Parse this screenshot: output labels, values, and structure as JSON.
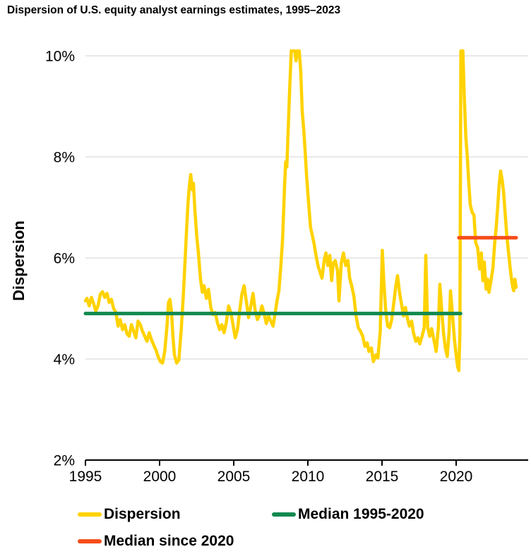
{
  "title": "Dispersion of U.S. equity analyst earnings estimates, 1995–2023",
  "legend": {
    "items": [
      {
        "label": "Dispersion",
        "color": "#FFD200"
      },
      {
        "label": "Median 1995-2020",
        "color": "#128A50"
      },
      {
        "label": "Median since 2020",
        "color": "#F64E1B"
      }
    ]
  },
  "chart_data": {
    "type": "line",
    "title": "Dispersion of U.S. equity analyst earnings estimates, 1995–2023",
    "xlabel": "",
    "ylabel": "Dispersion",
    "xlim": [
      1995,
      2024.5
    ],
    "ylim": [
      2,
      10
    ],
    "values_above_ylim_clipped": true,
    "grid": "horizontal",
    "grid_color": "#DCDCDC",
    "axis_color": "#000000",
    "legend_position": "bottom",
    "y_axis": {
      "tick_values": [
        10,
        8,
        6,
        4,
        2
      ],
      "tick_labels": [
        "10%",
        "8%",
        "6%",
        "4%",
        "2%"
      ],
      "grid_values": [
        10,
        8,
        6,
        4
      ]
    },
    "x_axis": {
      "tick_values": [
        1995,
        2000,
        2005,
        2010,
        2015,
        2020
      ],
      "tick_labels": [
        "1995",
        "2000",
        "2005",
        "2010",
        "2015",
        "2020"
      ]
    },
    "series": [
      {
        "name": "Dispersion",
        "color": "#FFD200",
        "width": 4.5,
        "x": [
          1995.0,
          1995.1,
          1995.25,
          1995.4,
          1995.55,
          1995.7,
          1995.85,
          1996.0,
          1996.15,
          1996.3,
          1996.45,
          1996.6,
          1996.75,
          1996.9,
          1997.05,
          1997.2,
          1997.35,
          1997.5,
          1997.65,
          1997.8,
          1997.95,
          1998.1,
          1998.25,
          1998.4,
          1998.55,
          1998.7,
          1998.85,
          1999.0,
          1999.15,
          1999.3,
          1999.45,
          1999.6,
          1999.75,
          1999.9,
          2000.05,
          2000.2,
          2000.35,
          2000.5,
          2000.6,
          2000.7,
          2000.8,
          2000.9,
          2001.0,
          2001.15,
          2001.3,
          2001.45,
          2001.6,
          2001.72,
          2001.82,
          2001.92,
          2002.02,
          2002.1,
          2002.2,
          2002.28,
          2002.38,
          2002.5,
          2002.62,
          2002.75,
          2002.88,
          2003.0,
          2003.15,
          2003.3,
          2003.45,
          2003.6,
          2003.75,
          2003.9,
          2004.05,
          2004.2,
          2004.35,
          2004.5,
          2004.65,
          2004.8,
          2004.95,
          2005.1,
          2005.25,
          2005.4,
          2005.55,
          2005.7,
          2005.85,
          2006.0,
          2006.15,
          2006.3,
          2006.45,
          2006.6,
          2006.75,
          2006.9,
          2007.05,
          2007.2,
          2007.35,
          2007.5,
          2007.65,
          2007.8,
          2007.92,
          2008.05,
          2008.18,
          2008.3,
          2008.42,
          2008.5,
          2008.58,
          2008.68,
          2008.78,
          2008.88,
          2009.0,
          2009.12,
          2009.2,
          2009.3,
          2009.42,
          2009.52,
          2009.62,
          2009.72,
          2009.82,
          2009.92,
          2010.05,
          2010.18,
          2010.3,
          2010.42,
          2010.55,
          2010.68,
          2010.82,
          2010.95,
          2011.1,
          2011.22,
          2011.35,
          2011.48,
          2011.6,
          2011.72,
          2011.85,
          2012.0,
          2012.1,
          2012.25,
          2012.4,
          2012.55,
          2012.7,
          2012.82,
          2012.95,
          2013.1,
          2013.25,
          2013.4,
          2013.55,
          2013.7,
          2013.85,
          2014.0,
          2014.12,
          2014.28,
          2014.42,
          2014.58,
          2014.72,
          2014.88,
          2015.02,
          2015.12,
          2015.25,
          2015.38,
          2015.52,
          2015.65,
          2015.8,
          2015.92,
          2016.05,
          2016.18,
          2016.32,
          2016.45,
          2016.58,
          2016.72,
          2016.85,
          2017.0,
          2017.12,
          2017.28,
          2017.42,
          2017.55,
          2017.7,
          2017.85,
          2017.95,
          2018.08,
          2018.22,
          2018.35,
          2018.5,
          2018.65,
          2018.8,
          2018.9,
          2019.02,
          2019.15,
          2019.28,
          2019.4,
          2019.52,
          2019.62,
          2019.75,
          2019.88,
          2020.0,
          2020.1,
          2020.18,
          2020.25,
          2020.32,
          2020.45,
          2020.55,
          2020.65,
          2020.75,
          2020.85,
          2020.95,
          2021.08,
          2021.2,
          2021.32,
          2021.45,
          2021.58,
          2021.7,
          2021.8,
          2021.9,
          2022.02,
          2022.12,
          2022.22,
          2022.35,
          2022.48,
          2022.6,
          2022.7,
          2022.8,
          2022.9,
          2023.0,
          2023.1,
          2023.2,
          2023.3,
          2023.4,
          2023.5,
          2023.6,
          2023.7,
          2023.8,
          2023.88,
          2023.96,
          2024.05
        ],
        "y": [
          5.15,
          5.2,
          5.05,
          5.22,
          5.1,
          4.95,
          5.05,
          5.28,
          5.33,
          5.22,
          5.3,
          5.12,
          5.18,
          5.0,
          4.93,
          4.65,
          4.78,
          4.58,
          4.68,
          4.5,
          4.45,
          4.68,
          4.55,
          4.42,
          4.75,
          4.68,
          4.55,
          4.45,
          4.35,
          4.52,
          4.38,
          4.28,
          4.18,
          4.05,
          3.95,
          3.92,
          4.15,
          4.65,
          5.12,
          5.18,
          4.95,
          4.45,
          4.08,
          3.92,
          3.98,
          4.55,
          5.25,
          5.95,
          6.55,
          7.1,
          7.45,
          7.65,
          7.35,
          7.48,
          6.95,
          6.45,
          6.1,
          5.6,
          5.32,
          5.45,
          5.2,
          5.38,
          5.02,
          4.88,
          4.92,
          4.72,
          4.58,
          4.68,
          4.52,
          4.72,
          5.05,
          4.92,
          4.68,
          4.42,
          4.58,
          4.95,
          5.28,
          5.45,
          5.15,
          4.82,
          5.05,
          5.3,
          4.95,
          4.78,
          4.88,
          5.05,
          4.9,
          4.7,
          4.85,
          4.75,
          4.65,
          4.92,
          5.15,
          5.35,
          5.85,
          6.4,
          7.35,
          7.9,
          7.8,
          8.6,
          9.4,
          10.1,
          10.1,
          10.1,
          9.9,
          10.1,
          10.1,
          9.7,
          8.9,
          8.55,
          8.1,
          7.6,
          7.1,
          6.6,
          6.45,
          6.28,
          6.05,
          5.85,
          5.72,
          5.6,
          5.95,
          6.1,
          5.85,
          6.05,
          5.55,
          5.9,
          5.95,
          5.75,
          5.15,
          5.9,
          6.1,
          5.85,
          5.95,
          5.6,
          5.45,
          5.25,
          4.85,
          4.62,
          4.55,
          4.45,
          4.25,
          4.32,
          4.15,
          4.22,
          3.95,
          4.08,
          4.02,
          4.55,
          6.15,
          5.55,
          4.95,
          4.65,
          4.62,
          4.78,
          5.12,
          5.42,
          5.65,
          5.32,
          5.08,
          4.85,
          5.02,
          4.8,
          4.65,
          4.75,
          4.52,
          4.35,
          4.42,
          4.3,
          4.45,
          4.62,
          6.05,
          4.62,
          4.45,
          4.6,
          4.38,
          4.15,
          4.62,
          5.48,
          5.0,
          4.5,
          4.2,
          4.05,
          4.52,
          5.35,
          4.88,
          4.4,
          4.08,
          3.85,
          3.77,
          4.5,
          10.1,
          10.1,
          9.2,
          8.4,
          8.0,
          7.5,
          7.05,
          6.9,
          6.85,
          6.3,
          6.2,
          5.78,
          6.1,
          5.55,
          5.92,
          5.38,
          5.58,
          5.32,
          5.55,
          5.8,
          6.3,
          6.6,
          7.0,
          7.45,
          7.72,
          7.55,
          7.3,
          6.9,
          6.5,
          6.2,
          5.92,
          5.65,
          5.45,
          5.35,
          5.58,
          5.42
        ]
      },
      {
        "name": "Median 1995-2020",
        "color": "#128A50",
        "width": 5,
        "x": [
          1995.0,
          2020.3
        ],
        "y": [
          4.9,
          4.9
        ]
      },
      {
        "name": "Median since 2020",
        "color": "#F64E1B",
        "width": 5,
        "x": [
          2020.18,
          2024.05
        ],
        "y": [
          6.4,
          6.4
        ]
      }
    ]
  }
}
